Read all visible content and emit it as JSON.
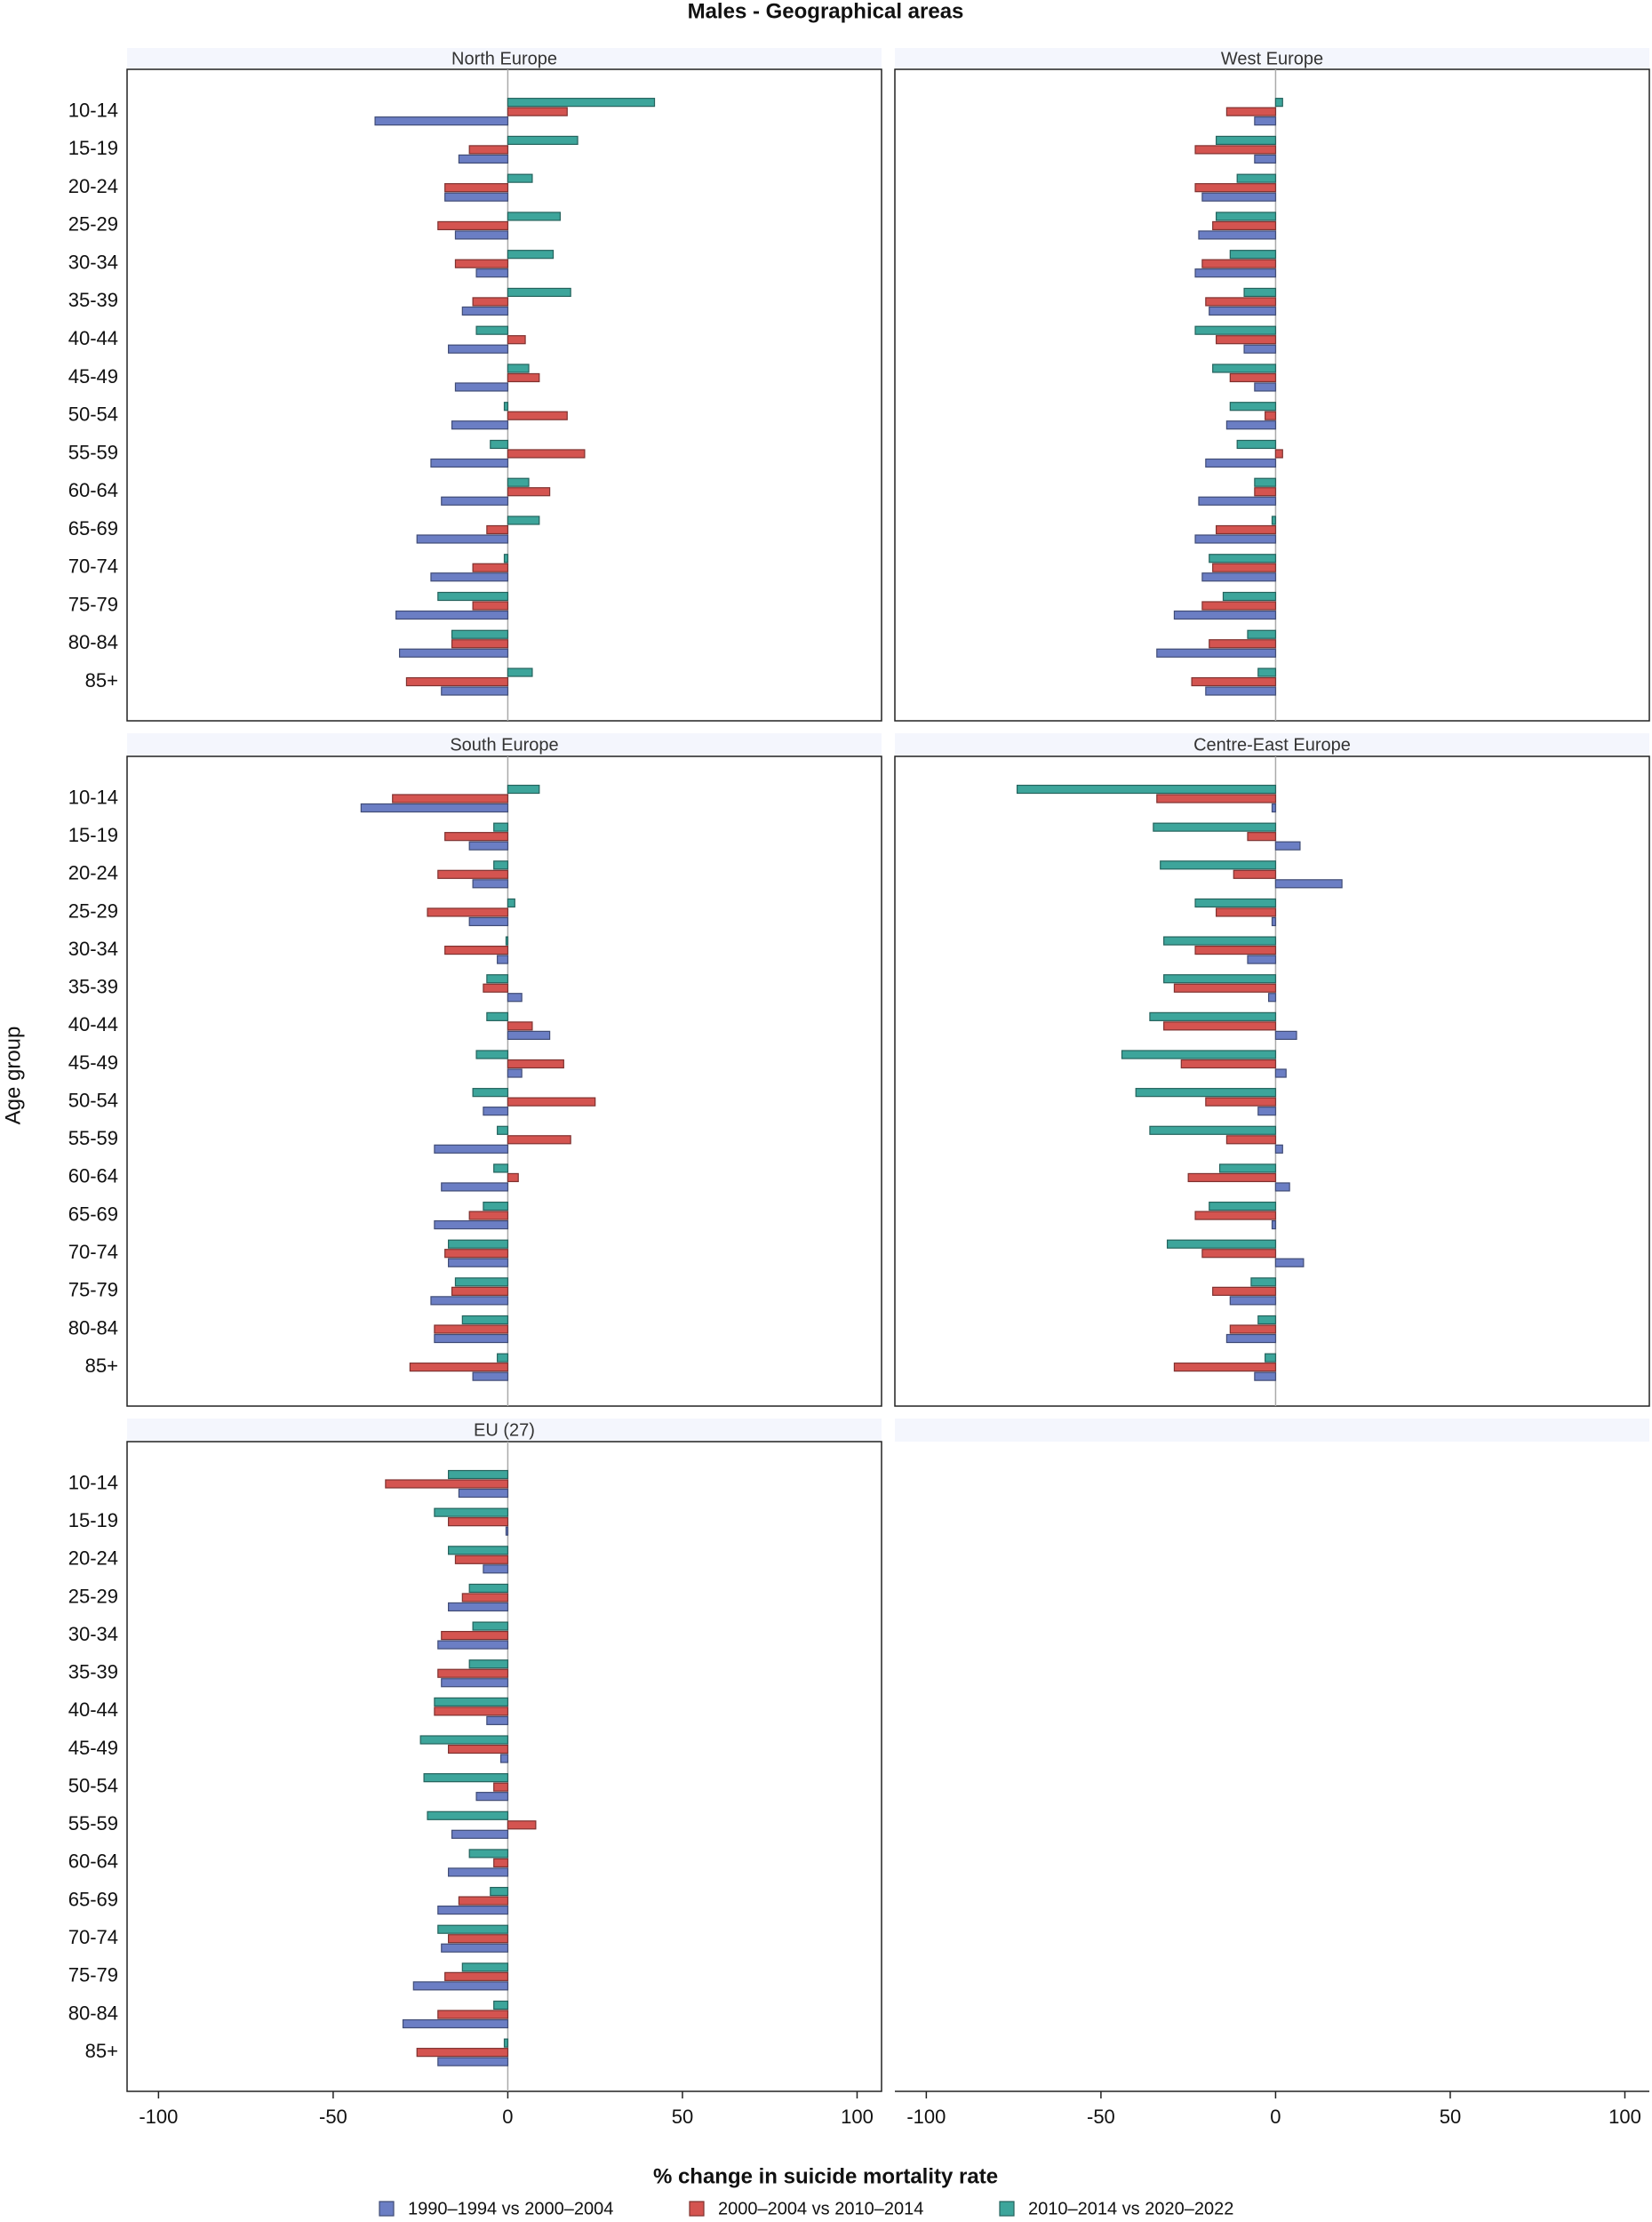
{
  "chart_data": {
    "type": "bar",
    "orientation": "horizontal",
    "title": "Males - Geographical areas",
    "xlabel": "% change in suicide mortality rate",
    "ylabel": "Age group",
    "categories": [
      "10-14",
      "15-19",
      "20-24",
      "25-29",
      "30-34",
      "35-39",
      "40-44",
      "45-49",
      "50-54",
      "55-59",
      "60-64",
      "65-69",
      "70-74",
      "75-79",
      "80-84",
      "85+"
    ],
    "xlim": [
      -109,
      107
    ],
    "xticks": [
      -100,
      -50,
      0,
      50,
      100
    ],
    "series": [
      {
        "name": "1990–1994 vs 2000–2004",
        "color": "#6b7ec4"
      },
      {
        "name": "2000–2004 vs 2010–2014",
        "color": "#d45450"
      },
      {
        "name": "2010–2014 vs 2020–2022",
        "color": "#3da59b"
      }
    ],
    "panels": [
      {
        "title": "North Europe",
        "series": [
          {
            "values": [
              -38,
              -14,
              -18,
              -15,
              -9,
              -13,
              -17,
              -15,
              -16,
              -22,
              -19,
              -26,
              -22,
              -32,
              -31,
              -19
            ]
          },
          {
            "values": [
              17,
              -11,
              -18,
              -20,
              -15,
              -10,
              5,
              9,
              17,
              22,
              12,
              -6,
              -10,
              -10,
              -16,
              -29
            ]
          },
          {
            "values": [
              42,
              20,
              7,
              15,
              13,
              18,
              -9,
              6,
              -1,
              -5,
              6,
              9,
              -1,
              -20,
              -16,
              7
            ]
          }
        ]
      },
      {
        "title": "West Europe",
        "series": [
          {
            "values": [
              -6,
              -6,
              -21,
              -22,
              -23,
              -19,
              -9,
              -6,
              -14,
              -20,
              -22,
              -23,
              -21,
              -29,
              -34,
              -20
            ]
          },
          {
            "values": [
              -14,
              -23,
              -23,
              -18,
              -21,
              -20,
              -17,
              -13,
              -3,
              2,
              -6,
              -17,
              -18,
              -21,
              -19,
              -24
            ]
          },
          {
            "values": [
              2,
              -17,
              -11,
              -17,
              -13,
              -9,
              -23,
              -18,
              -13,
              -11,
              -6,
              -1,
              -19,
              -15,
              -8,
              -5
            ]
          }
        ]
      },
      {
        "title": "South Europe",
        "series": [
          {
            "values": [
              -42,
              -11,
              -10,
              -11,
              -3,
              4,
              12,
              4,
              -7,
              -21,
              -19,
              -21,
              -17,
              -22,
              -21,
              -10
            ]
          },
          {
            "values": [
              -33,
              -18,
              -20,
              -23,
              -18,
              -7,
              7,
              16,
              25,
              18,
              3,
              -11,
              -18,
              -16,
              -21,
              -28
            ]
          },
          {
            "values": [
              9,
              -4,
              -4,
              2,
              -0.5,
              -6,
              -6,
              -9,
              -10,
              -3,
              -4,
              -7,
              -17,
              -15,
              -13,
              -3
            ]
          }
        ]
      },
      {
        "title": "Centre-East Europe",
        "series": [
          {
            "values": [
              -1,
              7,
              19,
              -1,
              -8,
              -2,
              6,
              3,
              -5,
              2,
              4,
              -1,
              8,
              -13,
              -14,
              -6
            ]
          },
          {
            "values": [
              -34,
              -8,
              -12,
              -17,
              -23,
              -29,
              -32,
              -27,
              -20,
              -14,
              -25,
              -23,
              -21,
              -18,
              -13,
              -29
            ]
          },
          {
            "values": [
              -74,
              -35,
              -33,
              -23,
              -32,
              -32,
              -36,
              -44,
              -40,
              -36,
              -16,
              -19,
              -31,
              -7,
              -5,
              -3
            ]
          }
        ]
      },
      {
        "title": "EU (27)",
        "series": [
          {
            "values": [
              -14,
              -0.5,
              -7,
              -17,
              -20,
              -19,
              -6,
              -2,
              -9,
              -16,
              -17,
              -20,
              -19,
              -27,
              -30,
              -20
            ]
          },
          {
            "values": [
              -35,
              -17,
              -15,
              -13,
              -19,
              -20,
              -21,
              -17,
              -4,
              8,
              -4,
              -14,
              -17,
              -18,
              -20,
              -26
            ]
          },
          {
            "values": [
              -17,
              -21,
              -17,
              -11,
              -10,
              -11,
              -21,
              -25,
              -24,
              -23,
              -11,
              -5,
              -20,
              -13,
              -4,
              -1
            ]
          }
        ]
      }
    ]
  }
}
